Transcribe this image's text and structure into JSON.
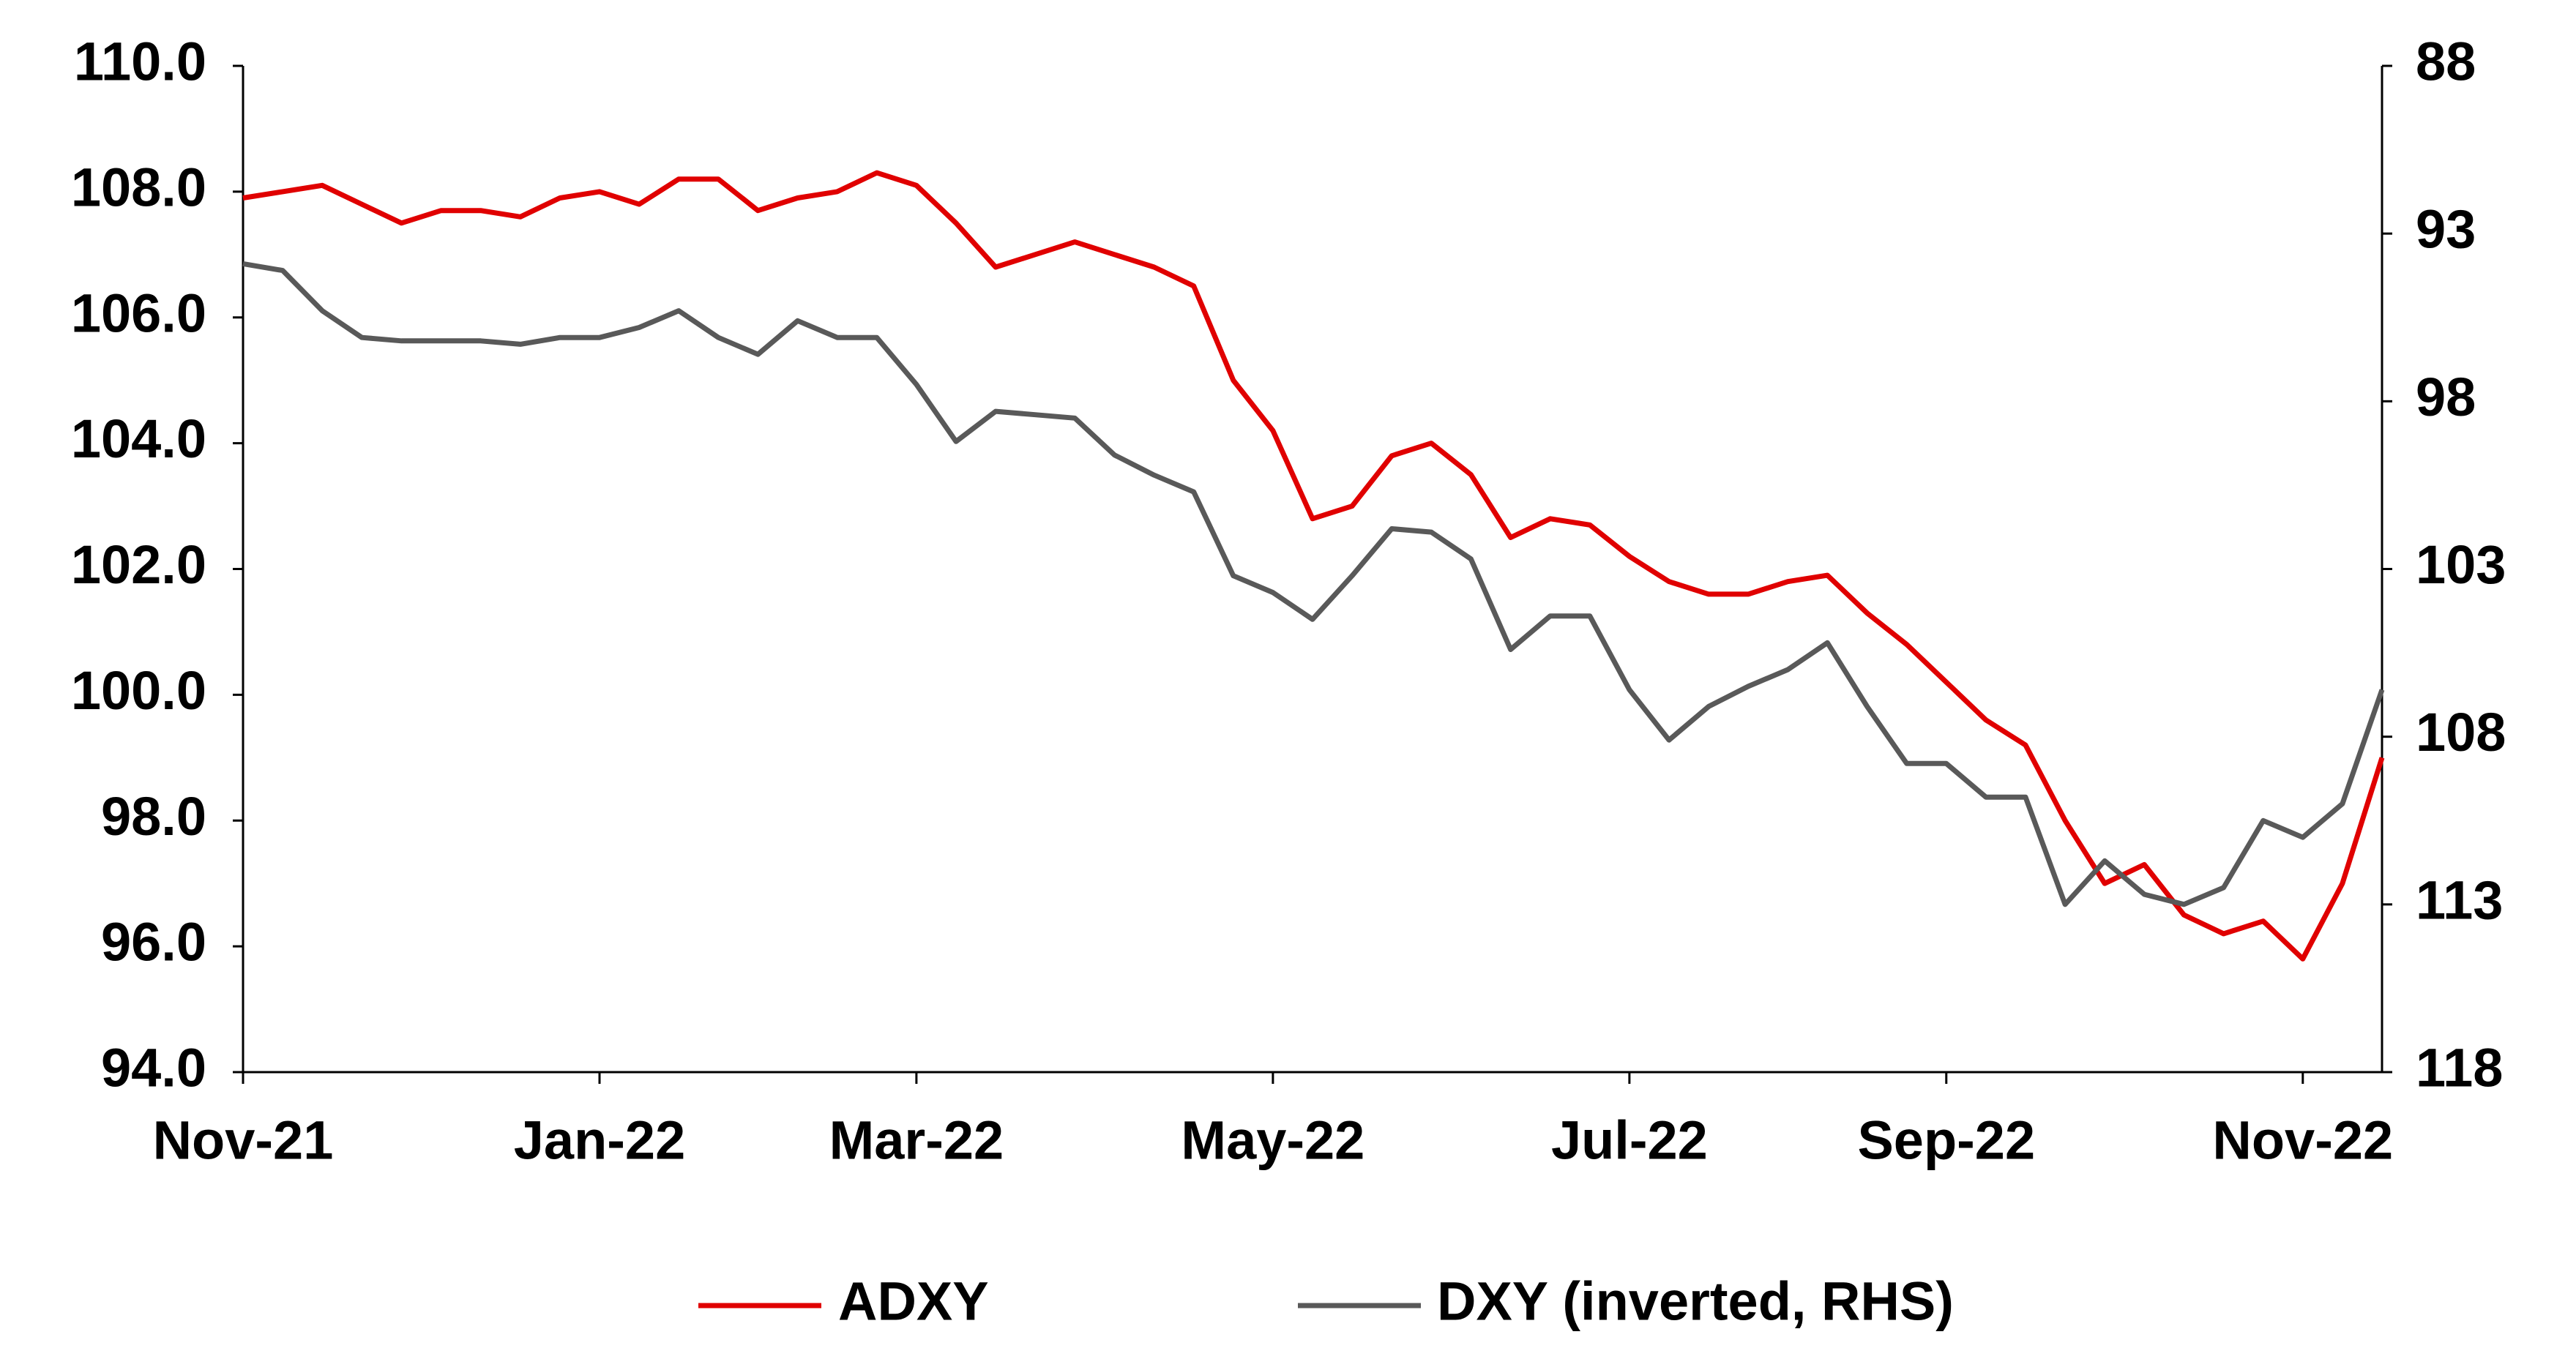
{
  "chart_data": {
    "type": "line",
    "categories": [
      "Nov-21",
      null,
      null,
      null,
      null,
      null,
      null,
      null,
      null,
      "Jan-22",
      null,
      null,
      null,
      null,
      null,
      null,
      null,
      "Mar-22",
      null,
      null,
      null,
      null,
      null,
      null,
      null,
      null,
      "May-22",
      null,
      null,
      null,
      null,
      null,
      null,
      null,
      null,
      "Jul-22",
      null,
      null,
      null,
      null,
      null,
      null,
      null,
      "Sep-22",
      null,
      null,
      null,
      null,
      null,
      null,
      null,
      null,
      "Nov-22",
      null,
      null
    ],
    "series": [
      {
        "name": "ADXY",
        "color": "#e00000",
        "axis": "y",
        "values": [
          107.9,
          108.0,
          108.1,
          107.8,
          107.5,
          107.7,
          107.7,
          107.6,
          107.9,
          108.0,
          107.8,
          108.2,
          108.2,
          107.7,
          107.9,
          108.0,
          108.3,
          108.1,
          107.5,
          106.8,
          107.0,
          107.2,
          107.0,
          106.8,
          106.5,
          105.0,
          104.2,
          102.8,
          103.0,
          103.8,
          104.0,
          103.5,
          102.5,
          102.8,
          102.7,
          102.2,
          101.8,
          101.6,
          101.6,
          101.8,
          101.9,
          101.3,
          100.8,
          100.2,
          99.6,
          99.2,
          98.0,
          97.0,
          97.3,
          96.5,
          96.2,
          96.4,
          95.8,
          97.0,
          99.0
        ]
      },
      {
        "name": "DXY (inverted, RHS)",
        "color": "#595959",
        "axis": "y2",
        "values": [
          93.9,
          94.1,
          95.3,
          96.1,
          96.2,
          96.2,
          96.2,
          96.3,
          96.1,
          96.1,
          95.8,
          95.3,
          96.1,
          96.6,
          95.6,
          96.1,
          96.1,
          97.5,
          99.2,
          98.3,
          98.4,
          98.5,
          99.6,
          100.2,
          100.7,
          103.2,
          103.7,
          104.5,
          103.2,
          101.8,
          101.9,
          102.7,
          105.4,
          104.4,
          104.4,
          106.6,
          108.1,
          107.1,
          106.5,
          106.0,
          105.2,
          107.1,
          108.8,
          108.8,
          109.8,
          109.8,
          113.0,
          111.7,
          112.7,
          113.0,
          112.5,
          110.5,
          111.0,
          110.0,
          106.6
        ]
      }
    ],
    "ylim": [
      94,
      110
    ],
    "yticks": [
      {
        "value": 94,
        "label": "94.0"
      },
      {
        "value": 96,
        "label": "96.0"
      },
      {
        "value": 98,
        "label": "98.0"
      },
      {
        "value": 100,
        "label": "100.0"
      },
      {
        "value": 102,
        "label": "102.0"
      },
      {
        "value": 104,
        "label": "104.0"
      },
      {
        "value": 106,
        "label": "106.0"
      },
      {
        "value": 108,
        "label": "108.0"
      },
      {
        "value": 110,
        "label": "110.0"
      }
    ],
    "y2lim": [
      118,
      88
    ],
    "y2ticks": [
      88,
      93,
      98,
      103,
      108,
      113,
      118
    ],
    "grid": false,
    "legend": "bottom"
  }
}
